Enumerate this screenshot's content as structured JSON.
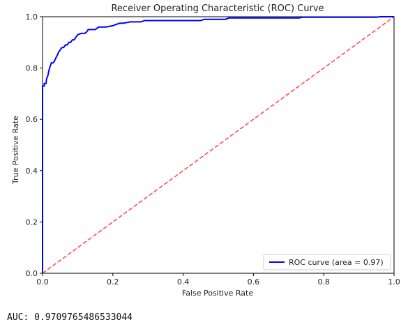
{
  "chart_data": {
    "type": "line",
    "title": "Receiver Operating Characteristic (ROC) Curve",
    "xlabel": "False Positive Rate",
    "ylabel": "True Positive Rate",
    "xlim": [
      0,
      1
    ],
    "ylim": [
      0,
      1
    ],
    "x_ticks": [
      "0.0",
      "0.2",
      "0.4",
      "0.6",
      "0.8",
      "1.0"
    ],
    "y_ticks": [
      "0.0",
      "0.2",
      "0.4",
      "0.6",
      "0.8",
      "1.0"
    ],
    "grid": false,
    "legend_position": "lower-right",
    "series": [
      {
        "name": "ROC curve (area = 0.97)",
        "color": "#0000ff",
        "style": "solid",
        "x": [
          0,
          0,
          0.005,
          0.005,
          0.01,
          0.012,
          0.015,
          0.018,
          0.02,
          0.025,
          0.03,
          0.035,
          0.038,
          0.042,
          0.045,
          0.05,
          0.055,
          0.06,
          0.065,
          0.07,
          0.075,
          0.08,
          0.085,
          0.09,
          0.095,
          0.1,
          0.11,
          0.12,
          0.125,
          0.13,
          0.14,
          0.15,
          0.155,
          0.16,
          0.17,
          0.18,
          0.2,
          0.21,
          0.22,
          0.23,
          0.25,
          0.28,
          0.29,
          0.3,
          0.45,
          0.46,
          0.47,
          0.52,
          0.53,
          0.6,
          0.7,
          0.73,
          0.74,
          0.85,
          0.95,
          0.96,
          0.97,
          0.98,
          1.0
        ],
        "y": [
          0,
          0.73,
          0.73,
          0.74,
          0.74,
          0.76,
          0.77,
          0.79,
          0.8,
          0.82,
          0.82,
          0.83,
          0.84,
          0.85,
          0.86,
          0.87,
          0.88,
          0.88,
          0.89,
          0.89,
          0.9,
          0.9,
          0.91,
          0.91,
          0.92,
          0.93,
          0.935,
          0.935,
          0.94,
          0.95,
          0.95,
          0.95,
          0.955,
          0.96,
          0.96,
          0.96,
          0.965,
          0.97,
          0.975,
          0.975,
          0.98,
          0.98,
          0.985,
          0.985,
          0.985,
          0.99,
          0.99,
          0.99,
          0.995,
          0.995,
          0.995,
          0.995,
          0.998,
          0.998,
          0.998,
          1.0,
          1.0,
          1.0,
          1.0
        ]
      },
      {
        "name": "",
        "color": "#ff4444",
        "style": "dashed",
        "x": [
          0,
          1
        ],
        "y": [
          0,
          1
        ]
      }
    ]
  },
  "output": {
    "auc_text": "AUC: 0.9709765486533044"
  }
}
